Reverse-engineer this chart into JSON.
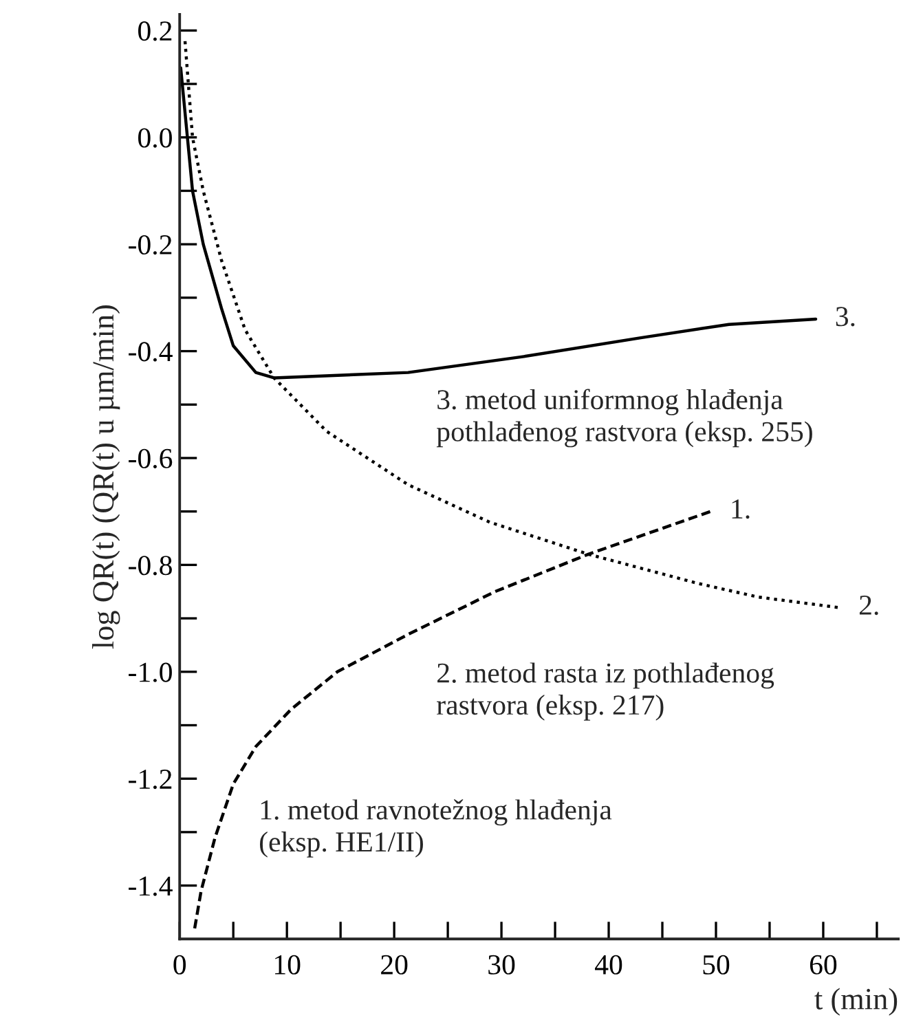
{
  "chart_data": {
    "type": "line",
    "xlabel": "t (min)",
    "ylabel": "log QR(t) (QR(t) u µm/min)",
    "xlim": [
      0,
      67
    ],
    "ylim": [
      -1.5,
      0.23
    ],
    "xticks": [
      0,
      {
        "value": 5,
        "label": null
      },
      10,
      {
        "value": 15,
        "label": null
      },
      20,
      {
        "value": 25,
        "label": null
      },
      30,
      {
        "value": 35,
        "label": null
      },
      40,
      {
        "value": 45,
        "label": null
      },
      50,
      {
        "value": 55,
        "label": null
      },
      60,
      {
        "value": 65,
        "label": null
      }
    ],
    "yticks": [
      {
        "value": -1.4,
        "label": "-1.4"
      },
      {
        "value": -1.3,
        "label": null
      },
      {
        "value": -1.2,
        "label": "-1.2"
      },
      {
        "value": -1.1,
        "label": null
      },
      {
        "value": -1.0,
        "label": "-1.0"
      },
      {
        "value": -0.9,
        "label": null
      },
      {
        "value": -0.8,
        "label": "-0.8"
      },
      {
        "value": -0.7,
        "label": null
      },
      {
        "value": -0.6,
        "label": "-0.6"
      },
      {
        "value": -0.5,
        "label": null
      },
      {
        "value": -0.4,
        "label": "-0.4"
      },
      {
        "value": -0.3,
        "label": null
      },
      {
        "value": -0.2,
        "label": "-0.2"
      },
      {
        "value": -0.1,
        "label": null
      },
      {
        "value": 0.0,
        "label": "0.0"
      },
      {
        "value": 0.1,
        "label": null
      },
      {
        "value": 0.2,
        "label": "0.2"
      }
    ],
    "grid": false,
    "legend": false,
    "series": [
      {
        "name": "1.",
        "color": "#000000",
        "line_style": "dashed",
        "x": [
          1.4,
          2.0,
          3.3,
          5,
          7.1,
          10.4,
          14.7,
          21.3,
          29.4,
          38.1,
          49.5
        ],
        "values": [
          -1.48,
          -1.41,
          -1.31,
          -1.21,
          -1.14,
          -1.07,
          -1.0,
          -0.93,
          -0.85,
          -0.78,
          -0.7
        ]
      },
      {
        "name": "2.",
        "color": "#000000",
        "line_style": "dotted",
        "x": [
          0.5,
          1.2,
          2.2,
          3.9,
          6.1,
          8.8,
          13.7,
          21.3,
          28.9,
          38.1,
          48.4,
          53.9,
          61.5
        ],
        "values": [
          0.18,
          0.0,
          -0.1,
          -0.23,
          -0.36,
          -0.45,
          -0.55,
          -0.65,
          -0.72,
          -0.78,
          -0.835,
          -0.86,
          -0.88
        ]
      },
      {
        "name": "3.",
        "color": "#000000",
        "line_style": "solid",
        "x": [
          0.1,
          1.2,
          2.2,
          3.9,
          5,
          7.1,
          8.8,
          21.3,
          32.1,
          43,
          51.2,
          59.3
        ],
        "values": [
          0.13,
          -0.1,
          -0.2,
          -0.32,
          -0.39,
          -0.44,
          -0.45,
          -0.44,
          -0.41,
          -0.375,
          -0.35,
          -0.34
        ]
      }
    ],
    "annotations": [
      "3. metod uniformnog hlađenja\npothlađenog rastvora (eksp. 255)",
      "2. metod rasta iz pothlađenog\nrastvora (eksp. 217)",
      "1. metod ravnotežnog hlađenja\n(eksp. HE1/II)"
    ]
  }
}
